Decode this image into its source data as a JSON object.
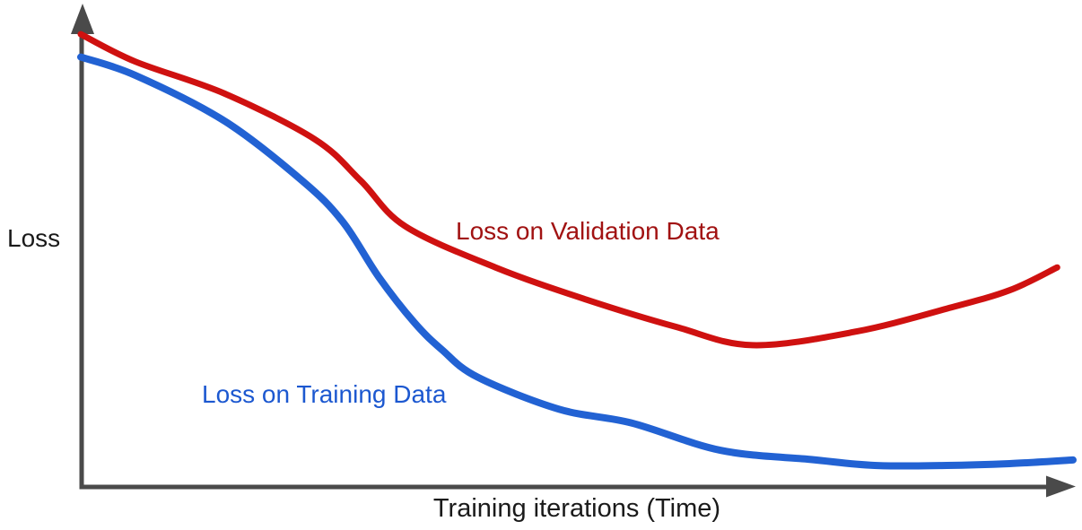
{
  "colors": {
    "background": "#ffffff",
    "axis": "#4a4a4a",
    "text": "#1a1a1a",
    "validation_label": "#a11212",
    "training_label": "#1c58d0"
  },
  "chart_data": {
    "type": "line",
    "title": "",
    "xlabel": "Training iterations (Time)",
    "ylabel": "Loss",
    "xlim": [
      0,
      100
    ],
    "ylim": [
      0,
      1
    ],
    "grid": false,
    "tick_labels": "none shown (conceptual sketch, unlabeled axes with arrowheads)",
    "legend_position": "inline text annotations next to each curve",
    "series": [
      {
        "name": "Loss on Validation Data",
        "color": "#cf1110",
        "x": [
          0,
          5.5,
          14.5,
          23.6,
          28.2,
          32.7,
          41.8,
          50.9,
          60.0,
          67.7,
          78.2,
          87.3,
          93.6,
          98.4
        ],
        "y": [
          0.99,
          0.93,
          0.86,
          0.76,
          0.67,
          0.57,
          0.48,
          0.41,
          0.35,
          0.31,
          0.34,
          0.39,
          0.43,
          0.48
        ]
      },
      {
        "name": "Loss on Training Data",
        "color": "#2262d3",
        "x": [
          0,
          5.5,
          14.5,
          22.3,
          26.4,
          30.0,
          33.6,
          36.4,
          40.0,
          48.2,
          55.5,
          64.5,
          73.6,
          80.0,
          87.3,
          93.6,
          100
        ],
        "y": [
          0.94,
          0.9,
          0.8,
          0.67,
          0.58,
          0.46,
          0.36,
          0.3,
          0.24,
          0.17,
          0.14,
          0.08,
          0.06,
          0.047,
          0.047,
          0.051,
          0.059
        ]
      }
    ]
  }
}
